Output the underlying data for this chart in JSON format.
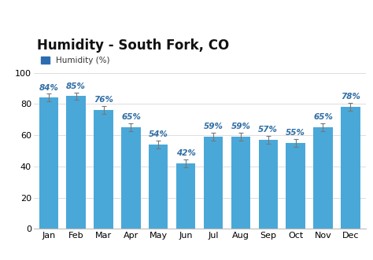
{
  "title": "Humidity - South Fork, CO",
  "months": [
    "Jan",
    "Feb",
    "Mar",
    "Apr",
    "May",
    "Jun",
    "Jul",
    "Aug",
    "Sep",
    "Oct",
    "Nov",
    "Dec"
  ],
  "values": [
    84,
    85,
    76,
    65,
    54,
    42,
    59,
    59,
    57,
    55,
    65,
    78
  ],
  "bar_color": "#4aa8d8",
  "legend_color": "#2b6cb0",
  "legend_label": "Humidity (%)",
  "label_color": "#2e6da4",
  "ylim": [
    0,
    100
  ],
  "yticks": [
    0,
    20,
    40,
    60,
    80,
    100
  ],
  "title_fontsize": 12,
  "label_fontsize": 7.5,
  "tick_fontsize": 8,
  "background_color": "#ffffff",
  "grid_color": "#dddddd",
  "error_color": "#777777"
}
